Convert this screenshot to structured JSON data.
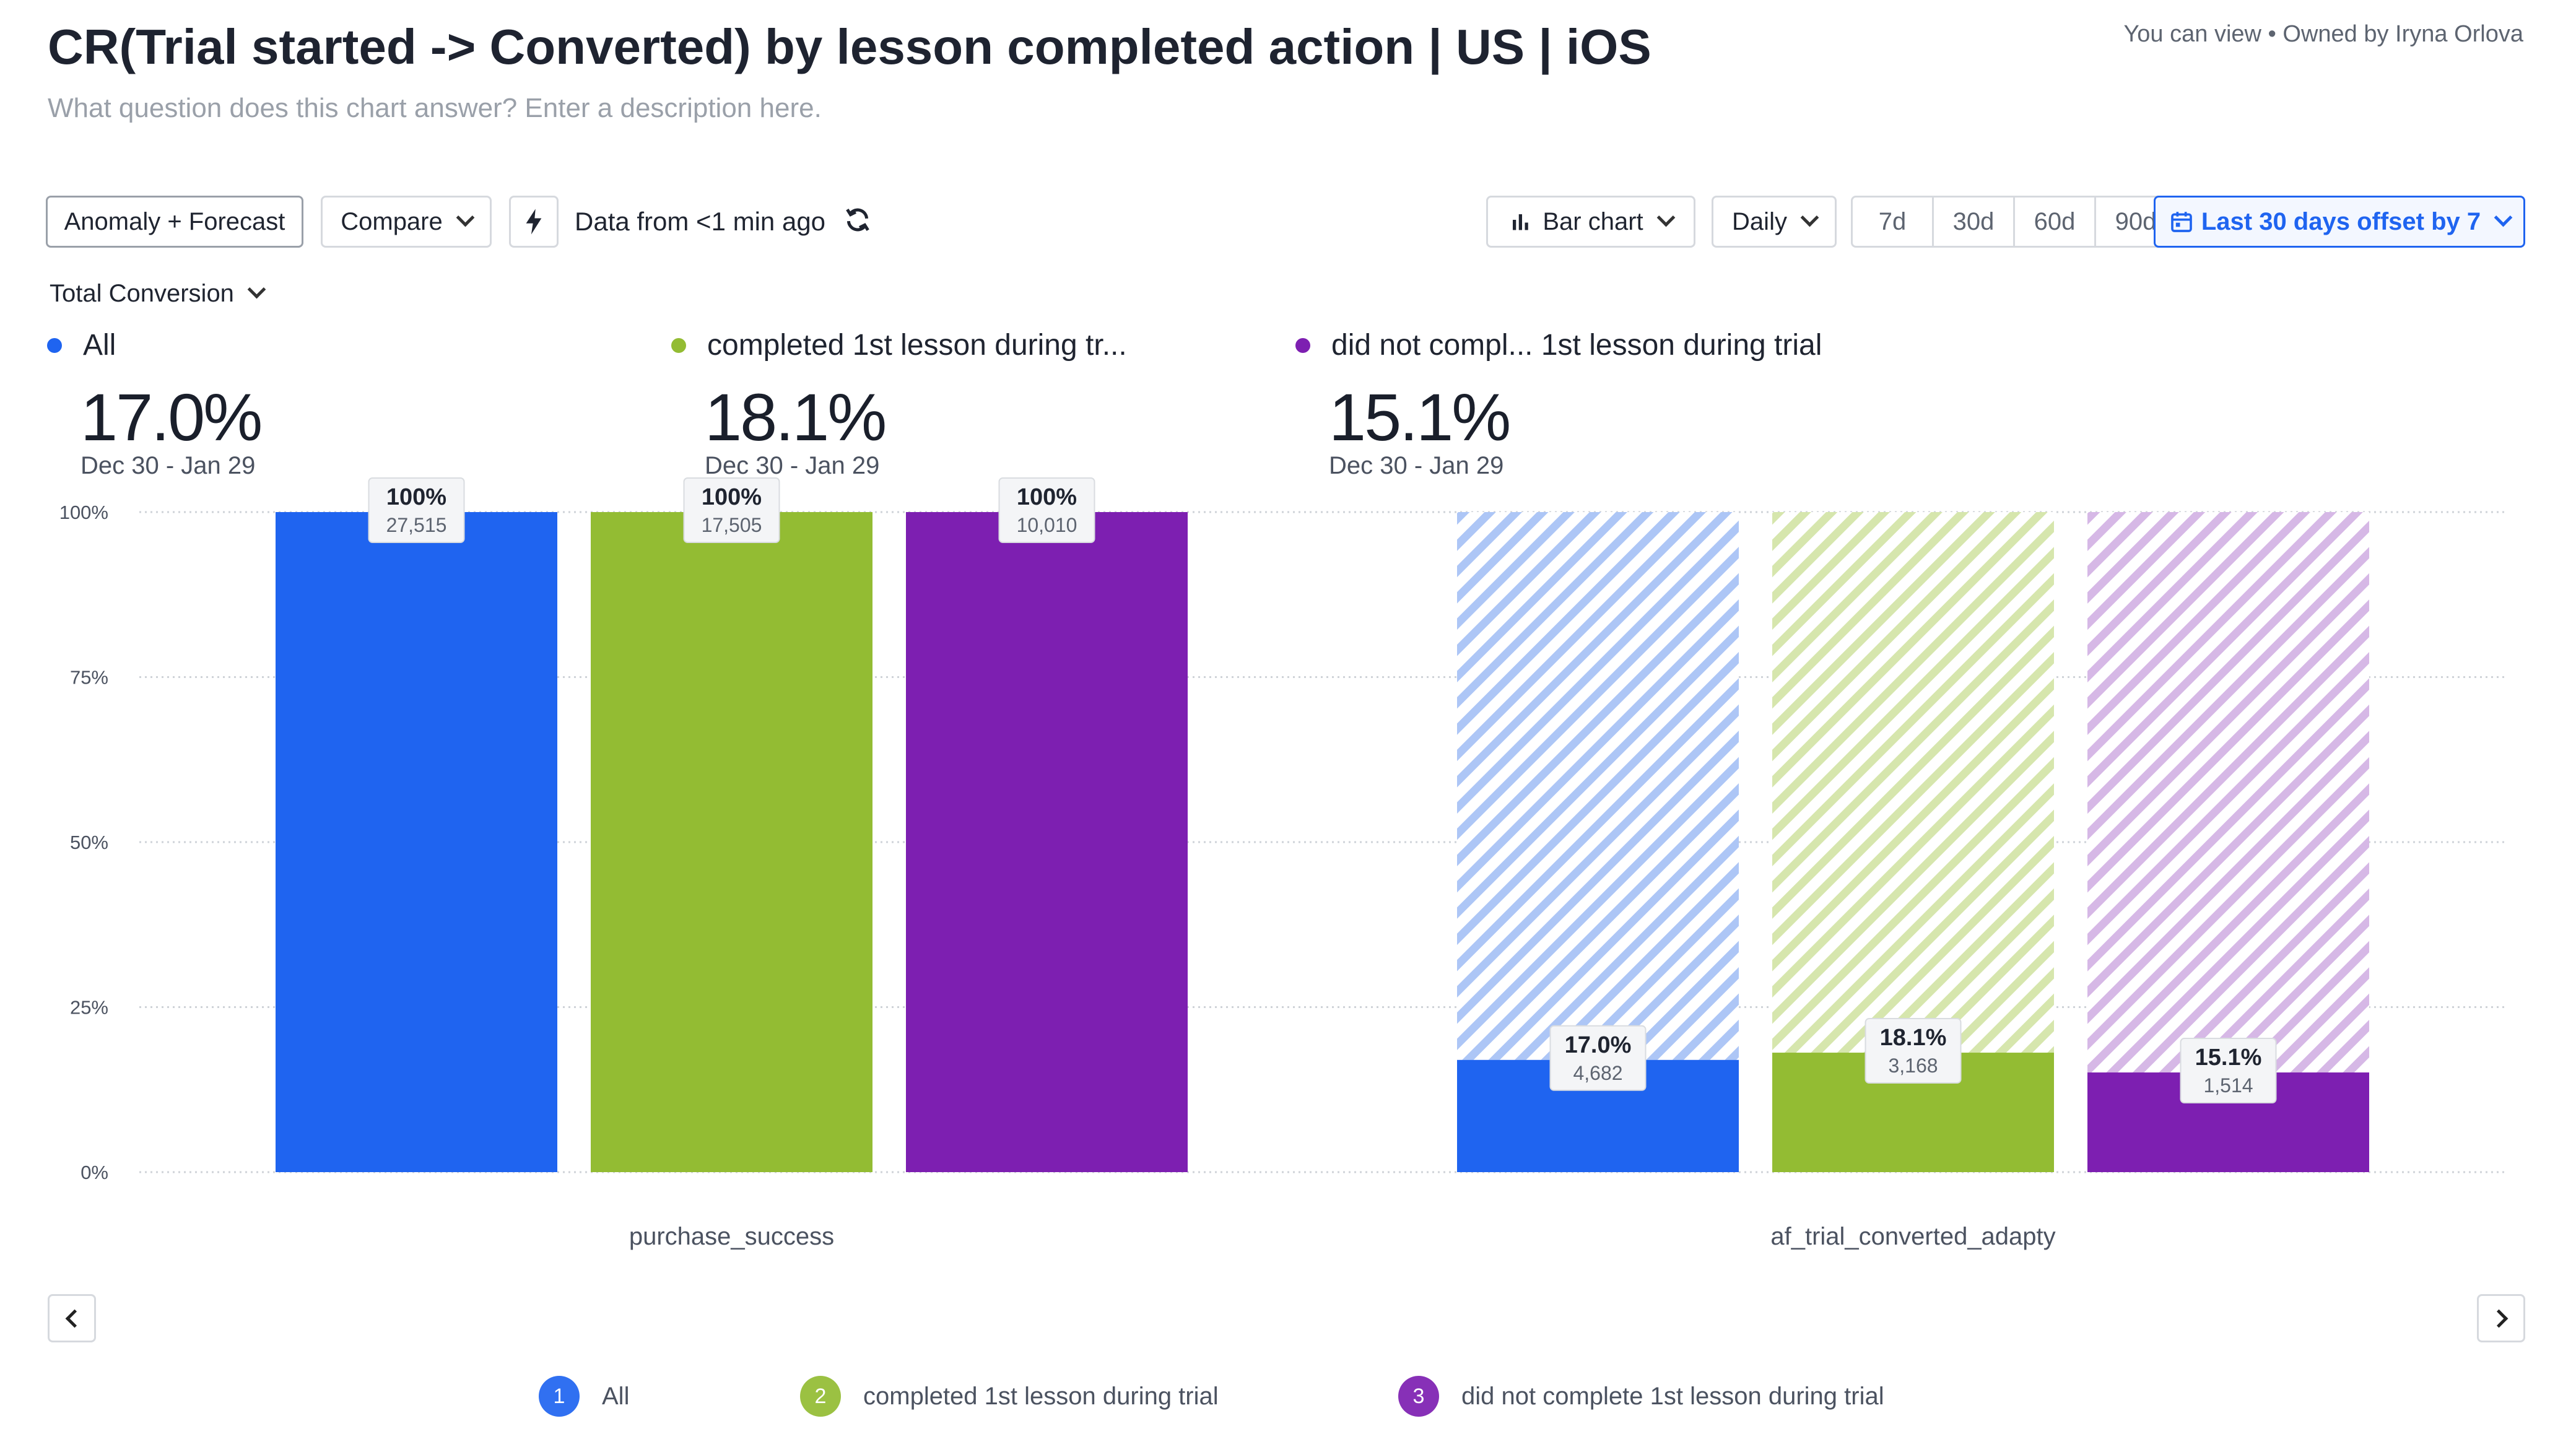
{
  "header": {
    "title": "CR(Trial started -> Converted) by lesson completed action | US | iOS",
    "description_placeholder": "What question does this chart answer? Enter a description here.",
    "owner": "You can view • Owned by Iryna Orlova"
  },
  "toolbar": {
    "anomaly_label": "Anomaly + Forecast",
    "compare_label": "Compare",
    "data_freshness": "Data from <1 min ago",
    "chart_type_label": "Bar chart",
    "interval_label": "Daily",
    "ranges": [
      "7d",
      "30d",
      "60d",
      "90d"
    ],
    "date_range_label": "Last 30 days offset by 7"
  },
  "metric_selector": "Total Conversion",
  "summary": [
    {
      "name": "All",
      "value": "17.0%",
      "range": "Dec 30 - Jan 29",
      "color": "#1f64f0"
    },
    {
      "name": "completed 1st lesson during tr...",
      "value": "18.1%",
      "range": "Dec 30 - Jan 29",
      "color": "#93bc33"
    },
    {
      "name": "did not compl...  1st lesson during trial",
      "value": "15.1%",
      "range": "Dec 30 - Jan 29",
      "color": "#7d1fb1"
    }
  ],
  "legend": [
    {
      "num": "1",
      "label": "All",
      "color": "#1f64f0"
    },
    {
      "num": "2",
      "label": "completed 1st lesson during trial",
      "color": "#93bc33"
    },
    {
      "num": "3",
      "label": "did not complete 1st lesson during trial",
      "color": "#7d1fb1"
    }
  ],
  "chart_data": {
    "type": "bar",
    "title": "CR(Trial started -> Converted) by lesson completed action | US | iOS",
    "categories": [
      "purchase_success",
      "af_trial_converted_adapty"
    ],
    "ylim": [
      0,
      100
    ],
    "yticks": [
      "0%",
      "25%",
      "50%",
      "75%",
      "100%"
    ],
    "ytick_values": [
      0,
      25,
      50,
      75,
      100
    ],
    "series": [
      {
        "name": "All",
        "color": "#1f64f0",
        "light": "#adc6f6",
        "values": [
          100,
          17.0
        ],
        "labels": [
          "100%",
          "17.0%"
        ],
        "counts": [
          "27,515",
          "4,682"
        ]
      },
      {
        "name": "completed 1st lesson during trial",
        "color": "#93bc33",
        "light": "#d6e6ad",
        "values": [
          100,
          18.1
        ],
        "labels": [
          "100%",
          "18.1%"
        ],
        "counts": [
          "17,505",
          "3,168"
        ]
      },
      {
        "name": "did not complete 1st lesson during trial",
        "color": "#7d1fb1",
        "light": "#d6b8e6",
        "values": [
          100,
          15.1
        ],
        "labels": [
          "100%",
          "15.1%"
        ],
        "counts": [
          "10,010",
          "1,514"
        ]
      }
    ]
  }
}
